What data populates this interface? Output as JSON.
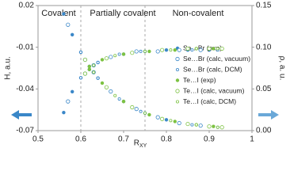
{
  "chart_data": {
    "type": "scatter",
    "x_label": "R",
    "x_label_sub": "XY",
    "y_label": "H, a.u.",
    "y2_label": "ρ, a. u.",
    "annotations": [
      "Covalent",
      "Partially covalent",
      "Non-covalent"
    ],
    "dividers": [
      0.6,
      0.75
    ],
    "xlim": [
      0.5,
      1
    ],
    "xticks": [
      0.5,
      0.6,
      0.7,
      0.8,
      0.9,
      1
    ],
    "ylim": [
      -0.07,
      0.02
    ],
    "yticks": [
      0.02,
      -0.01,
      -0.04,
      -0.07
    ],
    "y2lim": [
      0,
      0.15
    ],
    "y2ticks": [
      {
        "value": 0,
        "label": "0.00"
      },
      0.05,
      {
        "value": 0.1,
        "label": "0.10"
      },
      0.15
    ],
    "series": [
      {
        "name": "Se…Br (exp)",
        "color": "#3a87c8",
        "marker": "filled",
        "x": [
          0.56,
          0.58,
          0.6,
          0.62,
          0.64,
          0.66,
          0.7,
          0.75,
          0.8,
          0.85,
          0.9
        ],
        "values": [
          -0.057,
          -0.042,
          -0.032,
          -0.026,
          -0.021,
          -0.018,
          -0.015,
          -0.013,
          -0.012,
          -0.012,
          -0.012
        ],
        "y2_values": [
          0.14,
          0.115,
          0.094,
          0.077,
          0.063,
          0.052,
          0.035,
          0.021,
          0.013,
          0.008,
          0.005
        ]
      },
      {
        "name": "Se…Br (calc, vacuum)",
        "color": "#3a87c8",
        "marker": "open",
        "x": [
          0.57,
          0.61,
          0.63,
          0.67,
          0.73,
          0.78,
          0.83,
          0.88
        ],
        "values": [
          -0.049,
          -0.029,
          -0.023,
          -0.017,
          -0.013,
          -0.013,
          -0.012,
          -0.012
        ],
        "y2_values": [
          0.127,
          0.085,
          0.07,
          0.047,
          0.026,
          0.016,
          0.009,
          0.006
        ]
      },
      {
        "name": "Se…Br (calc, DCM)",
        "color": "#3a87c8",
        "marker": "small",
        "x": [
          0.6,
          0.62,
          0.64,
          0.69,
          0.74,
          0.79,
          0.86,
          0.92
        ],
        "values": [
          -0.032,
          -0.026,
          -0.021,
          -0.015,
          -0.013,
          -0.012,
          -0.012,
          -0.012
        ],
        "y2_values": [
          0.094,
          0.077,
          0.063,
          0.038,
          0.023,
          0.014,
          0.007,
          0.004
        ]
      },
      {
        "name": "Te…I (exp)",
        "color": "#7dc242",
        "marker": "filled",
        "x": [
          0.62,
          0.65,
          0.7,
          0.76,
          0.82,
          0.87,
          0.91
        ],
        "values": [
          -0.026,
          -0.019,
          -0.015,
          -0.013,
          -0.012,
          -0.011,
          -0.011
        ],
        "y2_values": [
          0.077,
          0.057,
          0.035,
          0.019,
          0.011,
          0.007,
          0.005
        ]
      },
      {
        "name": "Te…I (calc, vacuum)",
        "color": "#7dc242",
        "marker": "open",
        "x": [
          0.61,
          0.66,
          0.72,
          0.79,
          0.85,
          0.9,
          0.93
        ],
        "values": [
          -0.029,
          -0.018,
          -0.014,
          -0.012,
          -0.011,
          -0.011,
          -0.011
        ],
        "y2_values": [
          0.085,
          0.052,
          0.028,
          0.014,
          0.008,
          0.005,
          0.004
        ]
      },
      {
        "name": "Te…I (calc, DCM)",
        "color": "#7dc242",
        "marker": "small",
        "x": [
          0.63,
          0.68,
          0.75,
          0.81,
          0.87,
          0.92
        ],
        "values": [
          -0.023,
          -0.016,
          -0.013,
          -0.012,
          -0.011,
          -0.011
        ],
        "y2_values": [
          0.07,
          0.042,
          0.021,
          0.012,
          0.007,
          0.004
        ]
      }
    ]
  }
}
